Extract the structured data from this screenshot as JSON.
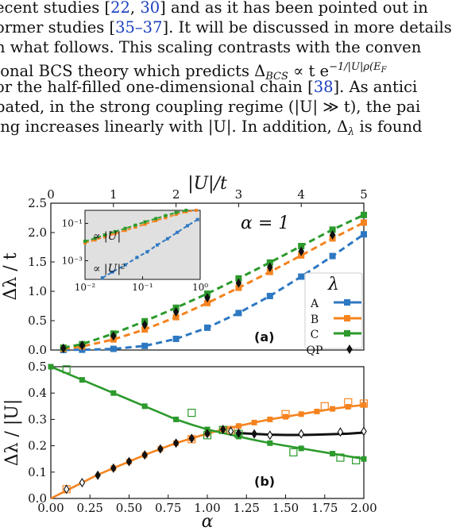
{
  "text": {
    "lines": [
      {
        "parts": [
          "ecent studies [",
          {
            "cite": "22"
          },
          ", ",
          {
            "cite": "30"
          },
          "] and as it has been pointed out in"
        ]
      },
      {
        "parts": [
          "ormer studies [",
          {
            "cite": "35–37"
          },
          "]. It will be discussed in more details"
        ]
      },
      {
        "parts": [
          "n what follows. This scaling contrasts with the conven"
        ]
      },
      {
        "parts": [
          "ional BCS theory which predicts Δ",
          {
            "sub": "BCS"
          },
          " ∝ t e",
          {
            "sup": "−1/|U|ρ(E"
          },
          {
            "sub2": "F"
          }
        ]
      },
      {
        "parts": [
          "or the half-filled one-dimensional chain [",
          {
            "cite": "38"
          },
          "]. As antici"
        ]
      },
      {
        "parts": [
          "pated, in the strong coupling regime (|U| ≫ t), the pai"
        ]
      },
      {
        "parts": [
          "ing increases linearly with |U|. In addition, Δ",
          {
            "sub": "λ"
          },
          " is found"
        ]
      }
    ]
  },
  "colors": {
    "A": "#2e78c2",
    "B": "#f5831f",
    "C": "#2c9a2c",
    "QP": "#111111",
    "QP_line": "#111111",
    "inset_bg": "#e0e0e0"
  },
  "chart_data": [
    {
      "id": "a",
      "type": "line",
      "panel_label": "(a)",
      "xlabel": "|U|/t",
      "ylabel": "Δλ / t",
      "xlim": [
        0,
        5
      ],
      "ylim": [
        0,
        2.5
      ],
      "xticks": [
        "0",
        "1",
        "2",
        "3",
        "4",
        "5"
      ],
      "yticks": [
        "0.0",
        "0.5",
        "1.0",
        "1.5",
        "2.0",
        "2.5"
      ],
      "annotation": "α = 1",
      "legend_title": "λ",
      "legend_position": "right",
      "series": [
        {
          "name": "A",
          "x": [
            0.2,
            0.5,
            1.0,
            1.5,
            2.0,
            2.5,
            3.0,
            3.5,
            4.0,
            4.5,
            5.0
          ],
          "values": [
            0.0,
            0.005,
            0.02,
            0.07,
            0.19,
            0.38,
            0.63,
            0.92,
            1.25,
            1.6,
            1.97
          ]
        },
        {
          "name": "B",
          "x": [
            0.2,
            0.5,
            1.0,
            1.5,
            2.0,
            2.5,
            3.0,
            3.5,
            4.0,
            4.5,
            5.0
          ],
          "values": [
            0.02,
            0.06,
            0.18,
            0.35,
            0.56,
            0.8,
            1.06,
            1.33,
            1.61,
            1.9,
            2.17
          ]
        },
        {
          "name": "C",
          "x": [
            0.2,
            0.5,
            1.0,
            1.5,
            2.0,
            2.5,
            3.0,
            3.5,
            4.0,
            4.5,
            5.0
          ],
          "values": [
            0.04,
            0.1,
            0.28,
            0.49,
            0.72,
            0.96,
            1.22,
            1.49,
            1.77,
            2.05,
            2.3
          ]
        },
        {
          "name": "QP",
          "x": [
            0.2,
            0.5,
            1.0,
            1.5,
            2.0,
            2.5,
            3.0,
            3.5,
            4.0,
            4.5
          ],
          "values": [
            0.03,
            0.08,
            0.24,
            0.43,
            0.65,
            0.89,
            1.14,
            1.41,
            1.68,
            1.96
          ]
        }
      ],
      "inset": {
        "xscale": "log",
        "yscale": "log",
        "xlim": [
          0.01,
          1
        ],
        "ylim": [
          0.0001,
          0.5
        ],
        "xticks": [
          "10⁻²",
          "10⁻¹",
          "10⁰"
        ],
        "yticks": [
          "10⁻¹",
          "10⁻³"
        ],
        "annotations": [
          "∝ |U|",
          "∝ |U|²"
        ],
        "series": [
          {
            "name": "A",
            "x": [
              0.02,
              0.03,
              0.05,
              0.08,
              0.12,
              0.18,
              0.27,
              0.4,
              0.6,
              0.9
            ],
            "values": [
              0.00012,
              0.00025,
              0.0006,
              0.0015,
              0.003,
              0.007,
              0.015,
              0.033,
              0.075,
              0.16
            ]
          },
          {
            "name": "B",
            "x": [
              0.01,
              0.015,
              0.022,
              0.033,
              0.05,
              0.075,
              0.11,
              0.17,
              0.25,
              0.38,
              0.57,
              0.85
            ],
            "values": [
              0.009,
              0.013,
              0.019,
              0.028,
              0.042,
              0.063,
              0.09,
              0.14,
              0.2,
              0.3,
              0.42,
              0.5
            ]
          },
          {
            "name": "C",
            "x": [
              0.01,
              0.015,
              0.022,
              0.033,
              0.05,
              0.075,
              0.11,
              0.17,
              0.25,
              0.38,
              0.57,
              0.85
            ],
            "values": [
              0.011,
              0.016,
              0.024,
              0.036,
              0.054,
              0.08,
              0.12,
              0.18,
              0.26,
              0.38,
              0.5,
              0.6
            ]
          }
        ]
      }
    },
    {
      "id": "b",
      "type": "line",
      "panel_label": "(b)",
      "xlabel": "α",
      "ylabel": "Δλ / |U|",
      "xlim": [
        0,
        2
      ],
      "ylim": [
        0,
        0.5
      ],
      "xticks": [
        "0.00",
        "0.25",
        "0.50",
        "0.75",
        "1.00",
        "1.25",
        "1.50",
        "1.75",
        "2.00"
      ],
      "yticks": [
        "0.0",
        "0.1",
        "0.2",
        "0.3",
        "0.4",
        "0.5"
      ],
      "series": [
        {
          "name": "B (line)",
          "x": [
            0.0,
            0.1,
            0.2,
            0.3,
            0.4,
            0.5,
            0.6,
            0.7,
            0.8,
            0.9,
            1.0,
            1.1,
            1.2,
            1.3,
            1.4,
            1.5,
            1.6,
            1.7,
            1.8,
            1.9,
            2.0
          ],
          "values": [
            0.0,
            0.03,
            0.06,
            0.09,
            0.115,
            0.14,
            0.165,
            0.188,
            0.21,
            0.228,
            0.246,
            0.262,
            0.275,
            0.288,
            0.3,
            0.31,
            0.32,
            0.33,
            0.34,
            0.348,
            0.355
          ]
        },
        {
          "name": "C (line)",
          "x": [
            0.0,
            0.1,
            0.2,
            0.3,
            0.4,
            0.5,
            0.6,
            0.7,
            0.8,
            0.9,
            1.0,
            1.1,
            1.2,
            1.3,
            1.4,
            1.5,
            1.6,
            1.7,
            1.8,
            1.9,
            2.0
          ],
          "values": [
            0.5,
            0.475,
            0.45,
            0.425,
            0.4,
            0.375,
            0.35,
            0.325,
            0.3,
            0.28,
            0.262,
            0.248,
            0.235,
            0.222,
            0.21,
            0.2,
            0.19,
            0.18,
            0.17,
            0.16,
            0.15
          ]
        },
        {
          "name": "QP (line)",
          "x": [
            1.2,
            1.3,
            1.4,
            1.5,
            1.6,
            1.7,
            1.8,
            1.9,
            2.0
          ],
          "values": [
            0.248,
            0.245,
            0.242,
            0.241,
            0.241,
            0.242,
            0.244,
            0.246,
            0.25
          ]
        },
        {
          "name": "B (filled)",
          "x": [
            0.4,
            0.5,
            0.6,
            0.7,
            0.8,
            0.9,
            1.0,
            1.1,
            1.2,
            1.3,
            1.4,
            1.5,
            1.6,
            1.7,
            1.8,
            1.9,
            2.0
          ],
          "values": [
            0.115,
            0.14,
            0.165,
            0.188,
            0.21,
            0.228,
            0.246,
            0.262,
            0.275,
            0.288,
            0.3,
            0.31,
            0.32,
            0.33,
            0.34,
            0.348,
            0.355
          ]
        },
        {
          "name": "C (filled)",
          "x": [
            0.0,
            0.2,
            0.4,
            0.6,
            0.8,
            1.0,
            1.2,
            1.4,
            1.6,
            1.8,
            2.0
          ],
          "values": [
            0.5,
            0.45,
            0.4,
            0.35,
            0.3,
            0.262,
            0.235,
            0.21,
            0.19,
            0.17,
            0.15
          ]
        },
        {
          "name": "B (open)",
          "x": [
            0.1,
            0.9,
            1.15,
            1.5,
            1.75,
            1.9,
            2.0
          ],
          "values": [
            0.035,
            0.225,
            0.26,
            0.32,
            0.35,
            0.365,
            0.36
          ]
        },
        {
          "name": "C (open)",
          "x": [
            0.1,
            0.9,
            1.0,
            1.1,
            1.2,
            1.55,
            1.85,
            1.95
          ],
          "values": [
            0.49,
            0.325,
            0.24,
            0.26,
            0.245,
            0.175,
            0.155,
            0.145
          ]
        },
        {
          "name": "QP (filled)",
          "x": [
            0.3,
            0.4,
            0.5,
            0.6,
            0.7,
            0.8,
            0.9,
            1.0,
            1.1,
            1.2,
            1.3
          ],
          "values": [
            0.088,
            0.115,
            0.14,
            0.165,
            0.188,
            0.21,
            0.228,
            0.246,
            0.262,
            0.248,
            0.245
          ]
        },
        {
          "name": "QP (open)",
          "x": [
            0.1,
            0.2,
            1.15,
            1.4,
            1.6,
            1.85,
            2.0
          ],
          "values": [
            0.035,
            0.06,
            0.255,
            0.24,
            0.245,
            0.252,
            0.255
          ]
        }
      ]
    }
  ]
}
